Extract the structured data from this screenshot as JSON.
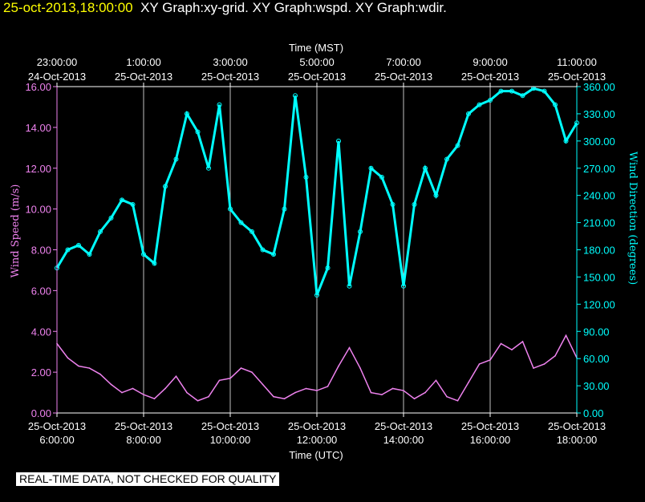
{
  "header": {
    "timestamp": "25-oct-2013,18:00:00",
    "titles": "XY Graph:xy-grid.  XY Graph:wspd.  XY Graph:wdir."
  },
  "qc_notice": "REAL-TIME DATA, NOT CHECKED FOR QUALITY",
  "colors": {
    "speed": "#ee82ee",
    "direction": "#00ffff",
    "grid": "#ffffff",
    "text": "#ffffff"
  },
  "chart_data": {
    "type": "line",
    "x_top_label": "Time (MST)",
    "x_bottom_label": "Time (UTC)",
    "y_left_label": "Wind Speed (m/s)",
    "y_right_label": "Wind Direction (degrees)",
    "y_left_range": [
      0,
      16
    ],
    "y_right_range": [
      0,
      360
    ],
    "x_range_hours_utc": [
      6,
      18
    ],
    "left_ticks": [
      "0.00",
      "2.00",
      "4.00",
      "6.00",
      "8.00",
      "10.00",
      "12.00",
      "14.00",
      "16.00"
    ],
    "right_ticks": [
      "0.00",
      "30.00",
      "60.00",
      "90.00",
      "120.00",
      "150.00",
      "180.00",
      "210.00",
      "240.00",
      "270.00",
      "300.00",
      "330.00",
      "360.00"
    ],
    "bottom_ticks": [
      {
        "t": 6,
        "l1": "25-Oct-2013",
        "l2": "6:00:00"
      },
      {
        "t": 8,
        "l1": "25-Oct-2013",
        "l2": "8:00:00"
      },
      {
        "t": 10,
        "l1": "25-Oct-2013",
        "l2": "10:00:00"
      },
      {
        "t": 12,
        "l1": "25-Oct-2013",
        "l2": "12:00:00"
      },
      {
        "t": 14,
        "l1": "25-Oct-2013",
        "l2": "14:00:00"
      },
      {
        "t": 16,
        "l1": "25-Oct-2013",
        "l2": "16:00:00"
      },
      {
        "t": 18,
        "l1": "25-Oct-2013",
        "l2": "18:00:00"
      }
    ],
    "top_ticks": [
      {
        "t": 6,
        "l1": "23:00:00",
        "l2": "24-Oct-2013"
      },
      {
        "t": 8,
        "l1": "1:00:00",
        "l2": "25-Oct-2013"
      },
      {
        "t": 10,
        "l1": "3:00:00",
        "l2": "25-Oct-2013"
      },
      {
        "t": 12,
        "l1": "5:00:00",
        "l2": "25-Oct-2013"
      },
      {
        "t": 14,
        "l1": "7:00:00",
        "l2": "25-Oct-2013"
      },
      {
        "t": 16,
        "l1": "9:00:00",
        "l2": "25-Oct-2013"
      },
      {
        "t": 18,
        "l1": "11:00:00",
        "l2": "25-Oct-2013"
      }
    ],
    "grid_vertical_hours": [
      8,
      10,
      12,
      14,
      16
    ],
    "series": [
      {
        "name": "wspd",
        "x": [
          6.0,
          6.25,
          6.5,
          6.75,
          7.0,
          7.25,
          7.5,
          7.75,
          8.0,
          8.25,
          8.5,
          8.75,
          9.0,
          9.25,
          9.5,
          9.75,
          10.0,
          10.25,
          10.5,
          10.75,
          11.0,
          11.25,
          11.5,
          11.75,
          12.0,
          12.25,
          12.5,
          12.75,
          13.0,
          13.25,
          13.5,
          13.75,
          14.0,
          14.25,
          14.5,
          14.75,
          15.0,
          15.25,
          15.5,
          15.75,
          16.0,
          16.25,
          16.5,
          16.75,
          17.0,
          17.25,
          17.5,
          17.75,
          18.0
        ],
        "values": [
          3.4,
          2.7,
          2.3,
          2.2,
          1.9,
          1.4,
          1.0,
          1.2,
          0.9,
          0.7,
          1.2,
          1.8,
          1.0,
          0.6,
          0.8,
          1.6,
          1.7,
          2.2,
          2.0,
          1.4,
          0.8,
          0.7,
          1.0,
          1.2,
          1.1,
          1.3,
          2.3,
          3.2,
          2.2,
          1.0,
          0.9,
          1.2,
          1.1,
          0.7,
          1.0,
          1.6,
          0.8,
          0.6,
          1.5,
          2.4,
          2.6,
          3.4,
          3.1,
          3.5,
          2.2,
          2.4,
          2.8,
          3.8,
          2.7
        ]
      },
      {
        "name": "wdir",
        "x": [
          6.0,
          6.25,
          6.5,
          6.75,
          7.0,
          7.25,
          7.5,
          7.75,
          8.0,
          8.25,
          8.5,
          8.75,
          9.0,
          9.25,
          9.5,
          9.75,
          10.0,
          10.25,
          10.5,
          10.75,
          11.0,
          11.25,
          11.5,
          11.75,
          12.0,
          12.25,
          12.5,
          12.75,
          13.0,
          13.25,
          13.5,
          13.75,
          14.0,
          14.25,
          14.5,
          14.75,
          15.0,
          15.25,
          15.5,
          15.75,
          16.0,
          16.25,
          16.5,
          16.75,
          17.0,
          17.25,
          17.5,
          17.75,
          18.0
        ],
        "values": [
          160,
          180,
          185,
          175,
          200,
          215,
          235,
          230,
          175,
          165,
          250,
          280,
          330,
          310,
          270,
          340,
          225,
          210,
          200,
          180,
          175,
          225,
          350,
          260,
          130,
          160,
          300,
          140,
          200,
          270,
          260,
          230,
          140,
          230,
          270,
          240,
          280,
          295,
          330,
          340,
          345,
          355,
          355,
          350,
          358,
          355,
          340,
          300,
          320
        ]
      }
    ]
  }
}
